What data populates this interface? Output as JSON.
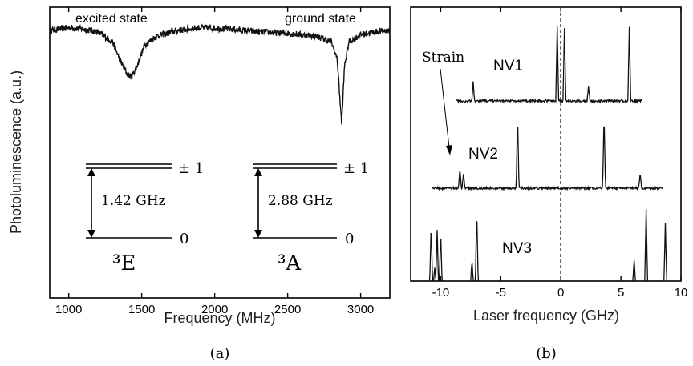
{
  "chart_data": [
    {
      "panel": "(a)",
      "type": "line",
      "xlabel": "Frequency (MHz)",
      "ylabel": "Photoluminescence (a.u.)",
      "xlim": [
        870,
        3200
      ],
      "ylim": [
        0,
        1
      ],
      "xticks": [
        1000,
        1500,
        2000,
        2500,
        3000
      ],
      "annotations": [
        "excited state",
        "ground state"
      ],
      "series": [
        {
          "points": [
            [
              870,
              0.92
            ],
            [
              1000,
              0.93
            ],
            [
              1100,
              0.925
            ],
            [
              1200,
              0.915
            ],
            [
              1300,
              0.88
            ],
            [
              1350,
              0.82
            ],
            [
              1400,
              0.77
            ],
            [
              1430,
              0.76
            ],
            [
              1470,
              0.8
            ],
            [
              1520,
              0.87
            ],
            [
              1600,
              0.9
            ],
            [
              1750,
              0.92
            ],
            [
              1900,
              0.93
            ],
            [
              2100,
              0.925
            ],
            [
              2300,
              0.915
            ],
            [
              2500,
              0.91
            ],
            [
              2700,
              0.9
            ],
            [
              2800,
              0.88
            ],
            [
              2840,
              0.82
            ],
            [
              2870,
              0.6
            ],
            [
              2890,
              0.8
            ],
            [
              2920,
              0.88
            ],
            [
              3000,
              0.905
            ],
            [
              3100,
              0.915
            ],
            [
              3200,
              0.92
            ]
          ]
        }
      ],
      "energy_levels": [
        {
          "state": "³E",
          "splitting": "1.42 GHz",
          "upper_label": "± 1",
          "lower_label": "0"
        },
        {
          "state": "³A",
          "splitting": "2.88 GHz",
          "upper_label": "± 1",
          "lower_label": "0"
        }
      ]
    },
    {
      "panel": "(b)",
      "type": "line",
      "xlabel": "Laser frequency (GHz)",
      "ylabel": "",
      "xlim": [
        -12.5,
        10
      ],
      "xticks": [
        -10,
        -5,
        0,
        5,
        10
      ],
      "reference_line_x": 0,
      "annotation": "Strain",
      "series": [
        {
          "name": "NV1",
          "x_range": [
            -8.7,
            6.8
          ],
          "peaks": [
            [
              -7.3,
              0.25
            ],
            [
              -0.3,
              1.0
            ],
            [
              0.3,
              1.0
            ],
            [
              2.3,
              0.2
            ],
            [
              5.7,
              1.0
            ]
          ]
        },
        {
          "name": "NV2",
          "x_range": [
            -10.7,
            8.5
          ],
          "peaks": [
            [
              -8.4,
              0.25
            ],
            [
              -8.1,
              0.2
            ],
            [
              -3.6,
              1.0
            ],
            [
              3.6,
              1.0
            ],
            [
              6.6,
              0.2
            ]
          ]
        },
        {
          "name": "NV3",
          "x_range": [
            -12.5,
            8.9
          ],
          "peaks": [
            [
              -10.8,
              0.8
            ],
            [
              -10.5,
              0.2
            ],
            [
              -10.3,
              0.7
            ],
            [
              -10.0,
              0.7
            ],
            [
              -7.4,
              0.3
            ],
            [
              -7.0,
              1.0
            ],
            [
              6.1,
              0.3
            ],
            [
              7.1,
              1.0
            ],
            [
              8.7,
              0.8
            ]
          ]
        }
      ]
    }
  ]
}
